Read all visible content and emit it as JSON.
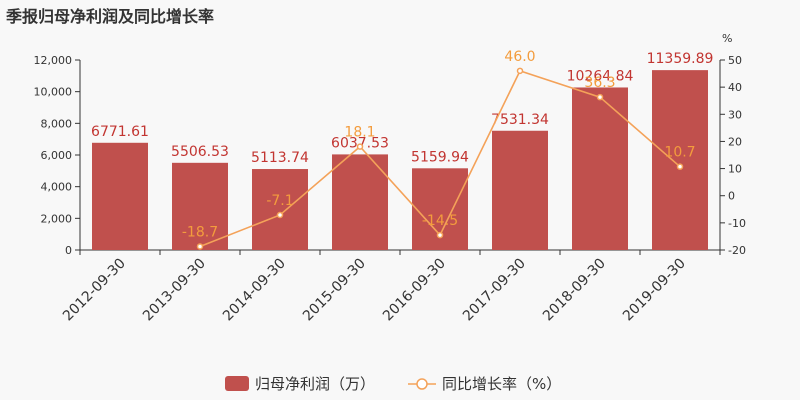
{
  "title": "季报归母净利润及同比增长率",
  "colors": {
    "bar": "#c0504d",
    "bar_label": "#c23531",
    "line": "#f4a259",
    "line_label": "#f39c3d",
    "axis": "#333333"
  },
  "chart_data": {
    "type": "bar",
    "title": "季报归母净利润及同比增长率",
    "categories": [
      "2012-09-30",
      "2013-09-30",
      "2014-09-30",
      "2015-09-30",
      "2016-09-30",
      "2017-09-30",
      "2018-09-30",
      "2019-09-30"
    ],
    "series": [
      {
        "name": "归母净利润（万）",
        "type": "bar",
        "axis": "left",
        "values": [
          6771.61,
          5506.53,
          5113.74,
          6037.53,
          5159.94,
          7531.34,
          10264.84,
          11359.89
        ],
        "labels": [
          "6771.61",
          "5506.53",
          "5113.74",
          "6037.53",
          "5159.94",
          "7531.34",
          "10264.84",
          "11359.89"
        ]
      },
      {
        "name": "同比增长率（%）",
        "type": "line",
        "axis": "right",
        "values": [
          null,
          -18.7,
          -7.1,
          18.1,
          -14.5,
          46.0,
          36.3,
          10.7
        ],
        "labels": [
          "",
          "-18.7",
          "-7.1",
          "18.1",
          "-14.5",
          "46.0",
          "36.3",
          "10.7"
        ]
      }
    ],
    "y_left": {
      "ylim": [
        0,
        12000
      ],
      "ticks": [
        "0",
        "2,000",
        "4,000",
        "6,000",
        "8,000",
        "10,000",
        "12,000"
      ]
    },
    "y_right": {
      "ylabel": "%",
      "ylim": [
        -20,
        50
      ],
      "ticks": [
        "-20",
        "-10",
        "0",
        "10",
        "20",
        "30",
        "40",
        "50"
      ]
    },
    "legend": {
      "position": "bottom-center",
      "items": [
        "归母净利润（万）",
        "同比增长率（%）"
      ]
    },
    "grid": false
  }
}
